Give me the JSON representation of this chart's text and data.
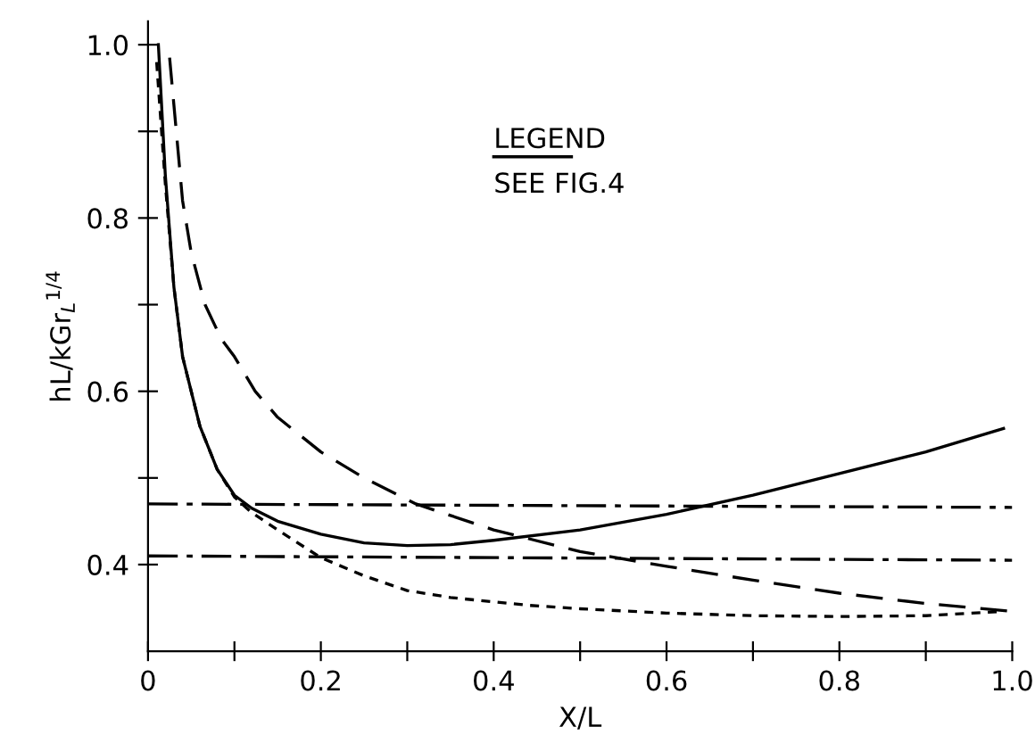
{
  "chart_data": {
    "type": "line",
    "xlabel": "X/L",
    "ylabel": "hL/kGr$_{L}$$^{1/4}$",
    "annotations": [
      "LEGEND",
      "SEE FIG.4"
    ],
    "xlim": [
      0,
      1.0
    ],
    "ylim": [
      0.3,
      1.027
    ],
    "xticks": [
      0,
      {
        "value": 0.1,
        "label": null
      },
      0.2,
      {
        "value": 0.3,
        "label": null
      },
      0.4,
      {
        "value": 0.5,
        "label": null
      },
      0.6,
      {
        "value": 0.7,
        "label": null
      },
      0.8,
      {
        "value": 0.9,
        "label": null
      },
      {
        "value": 1.0,
        "label": "1.0"
      }
    ],
    "yticks": [
      0.4,
      {
        "value": 0.5,
        "label": null
      },
      0.6,
      {
        "value": 0.7,
        "label": null
      },
      0.8,
      {
        "value": 0.9,
        "label": null
      },
      {
        "value": 1.0,
        "label": "1.0"
      }
    ],
    "grid": false,
    "legend": false,
    "series": [
      {
        "color": "#000000",
        "line_style": "solid",
        "x": [
          0.012,
          0.02,
          0.03,
          0.04,
          0.06,
          0.08,
          0.1,
          0.12,
          0.15,
          0.2,
          0.25,
          0.3,
          0.35,
          0.4,
          0.5,
          0.6,
          0.7,
          0.8,
          0.9,
          0.99
        ],
        "values": [
          1.0,
          0.85,
          0.72,
          0.64,
          0.56,
          0.51,
          0.48,
          0.465,
          0.45,
          0.435,
          0.425,
          0.422,
          0.423,
          0.428,
          0.44,
          0.458,
          0.48,
          0.505,
          0.53,
          0.557
        ]
      },
      {
        "color": "#000000",
        "line_style": "dotted",
        "x": [
          0.01,
          0.02,
          0.03,
          0.04,
          0.06,
          0.08,
          0.1,
          0.12,
          0.15,
          0.2,
          0.25,
          0.3,
          0.35,
          0.44,
          0.5,
          0.6,
          0.7,
          0.8,
          0.9,
          0.99
        ],
        "values": [
          0.98,
          0.84,
          0.72,
          0.64,
          0.56,
          0.51,
          0.478,
          0.46,
          0.44,
          0.408,
          0.387,
          0.37,
          0.362,
          0.353,
          0.349,
          0.344,
          0.341,
          0.34,
          0.341,
          0.346
        ]
      },
      {
        "color": "#000000",
        "line_style": "dashed",
        "x": [
          0.025,
          0.03,
          0.04,
          0.05,
          0.066,
          0.085,
          0.1,
          0.124,
          0.15,
          0.2,
          0.25,
          0.31,
          0.4,
          0.5,
          0.6,
          0.7,
          0.8,
          0.9,
          1.0
        ],
        "values": [
          0.985,
          0.93,
          0.82,
          0.76,
          0.7,
          0.66,
          0.64,
          0.6,
          0.57,
          0.53,
          0.5,
          0.47,
          0.44,
          0.415,
          0.398,
          0.382,
          0.367,
          0.355,
          0.346
        ]
      },
      {
        "color": "#000000",
        "line_style": "dashdot",
        "x": [
          0,
          1.0
        ],
        "values": [
          0.47,
          0.466
        ]
      },
      {
        "color": "#000000",
        "line_style": "dashdot",
        "x": [
          0,
          1.0
        ],
        "values": [
          0.41,
          0.405
        ]
      }
    ]
  }
}
